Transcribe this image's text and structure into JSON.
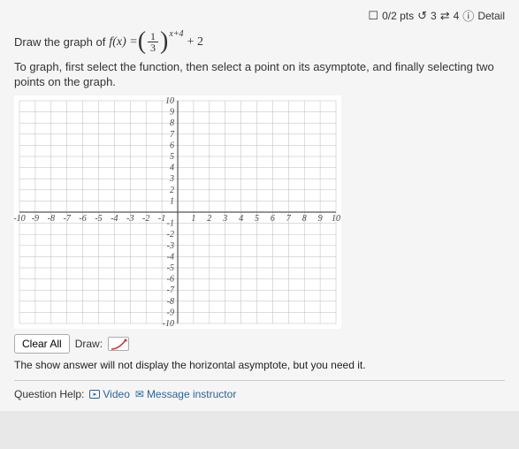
{
  "header": {
    "checkbox_glyph": "☐",
    "points": "0/2 pts",
    "retry_glyph": "↺",
    "retry_count": "3",
    "reattempt_glyph": "⇄",
    "reattempt_count": "4",
    "info_glyph": "ⓘ",
    "details": "Detail"
  },
  "prompt": {
    "lead": "Draw the graph of",
    "fx": "f(x) =",
    "frac_num": "1",
    "frac_den": "3",
    "exponent": "x+4",
    "tail": "+ 2"
  },
  "instructions": "To graph, first select the function, then select a point on its asymptote, and finally selecting two points on the graph.",
  "graph": {
    "xmin": -10,
    "xmax": 10,
    "ymin": -10,
    "ymax": 10,
    "x_ticks": [
      -10,
      -9,
      -8,
      -7,
      -6,
      -5,
      -4,
      -3,
      -2,
      -1,
      1,
      2,
      3,
      4,
      5,
      6,
      7,
      8,
      9,
      10
    ],
    "y_ticks": [
      -10,
      -9,
      -8,
      -7,
      -6,
      -5,
      -4,
      -3,
      -2,
      -1,
      1,
      2,
      3,
      4,
      5,
      6,
      7,
      8,
      9,
      10
    ],
    "grid_color": "#bbb",
    "axis_color": "#555",
    "bg_color": "#ffffff",
    "label_fontsize": 10
  },
  "toolbar": {
    "clear_label": "Clear All",
    "draw_label": "Draw:",
    "curve_color": "#cc3333"
  },
  "note": "The show answer will not display the horizontal asymptote, but you need it.",
  "help": {
    "label": "Question Help:",
    "video_glyph": "▸",
    "video_label": "Video",
    "mail_glyph": "✉",
    "message_label": "Message instructor"
  }
}
